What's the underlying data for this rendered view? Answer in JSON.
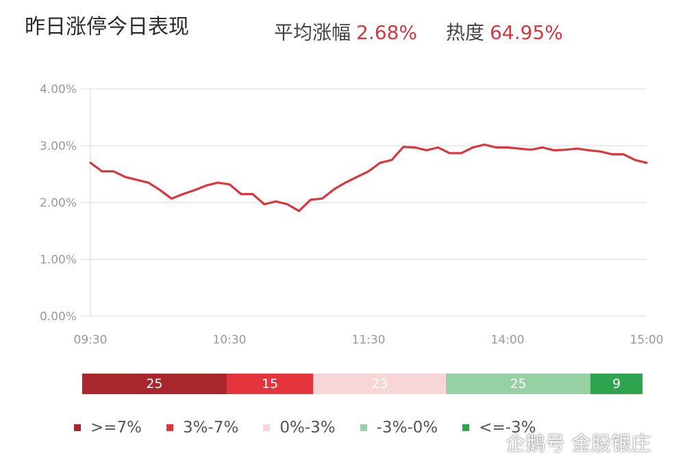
{
  "header": {
    "title": "昨日涨停今日表现",
    "avg_label": "平均涨幅",
    "avg_value": "2.68%",
    "heat_label": "热度",
    "heat_value": "64.95%"
  },
  "colors": {
    "line": "#d9363e",
    "grid": "#e6e6e6",
    "axis_text": "#9a9a9a",
    "accent": "#d9363e"
  },
  "chart_data": {
    "type": "line",
    "title": "",
    "xlabel": "",
    "ylabel": "",
    "x_ticks": [
      "09:30",
      "10:30",
      "11:30",
      "14:00",
      "15:00"
    ],
    "y_ticks": [
      "0.00%",
      "1.00%",
      "2.00%",
      "3.00%",
      "4.00%"
    ],
    "ylim": [
      0,
      4
    ],
    "grid": true,
    "series": [
      {
        "x": [
          "09:30",
          "09:35",
          "09:40",
          "09:45",
          "09:50",
          "09:55",
          "10:00",
          "10:05",
          "10:10",
          "10:15",
          "10:20",
          "10:25",
          "10:30",
          "10:35",
          "10:40",
          "10:45",
          "10:50",
          "10:55",
          "11:00",
          "11:05",
          "11:10",
          "11:15",
          "11:20",
          "11:25",
          "11:30",
          "13:05",
          "13:10",
          "13:15",
          "13:20",
          "13:25",
          "13:30",
          "13:35",
          "13:40",
          "13:45",
          "13:50",
          "13:55",
          "14:00",
          "14:05",
          "14:10",
          "14:15",
          "14:20",
          "14:25",
          "14:30",
          "14:35",
          "14:40",
          "14:45",
          "14:50",
          "14:55",
          "15:00"
        ],
        "values": [
          2.7,
          2.55,
          2.55,
          2.45,
          2.4,
          2.35,
          2.22,
          2.07,
          2.15,
          2.22,
          2.3,
          2.35,
          2.32,
          2.15,
          2.15,
          1.97,
          2.02,
          1.97,
          1.85,
          2.05,
          2.07,
          2.23,
          2.35,
          2.45,
          2.55,
          2.7,
          2.75,
          2.98,
          2.97,
          2.92,
          2.97,
          2.87,
          2.87,
          2.97,
          3.02,
          2.97,
          2.97,
          2.95,
          2.93,
          2.97,
          2.92,
          2.93,
          2.95,
          2.92,
          2.9,
          2.85,
          2.85,
          2.75,
          2.7
        ]
      }
    ]
  },
  "distribution": [
    {
      "label": "25",
      "value": 25,
      "color": "#a8262c"
    },
    {
      "label": "15",
      "value": 15,
      "color": "#e4353c"
    },
    {
      "label": "23",
      "value": 23,
      "color": "#f8d5d6"
    },
    {
      "label": "25",
      "value": 25,
      "color": "#96d1a3"
    },
    {
      "label": "9",
      "value": 9,
      "color": "#2ea44f"
    }
  ],
  "legend": [
    {
      "label": ">=7%",
      "color": "#a8262c"
    },
    {
      "label": "3%-7%",
      "color": "#e4353c"
    },
    {
      "label": "0%-3%",
      "color": "#f8d5d6"
    },
    {
      "label": "-3%-0%",
      "color": "#96d1a3"
    },
    {
      "label": "<=-3%",
      "color": "#2ea44f"
    }
  ],
  "watermark": {
    "text": "企鹅号 金股银庄",
    "icon": "penguin-icon"
  }
}
